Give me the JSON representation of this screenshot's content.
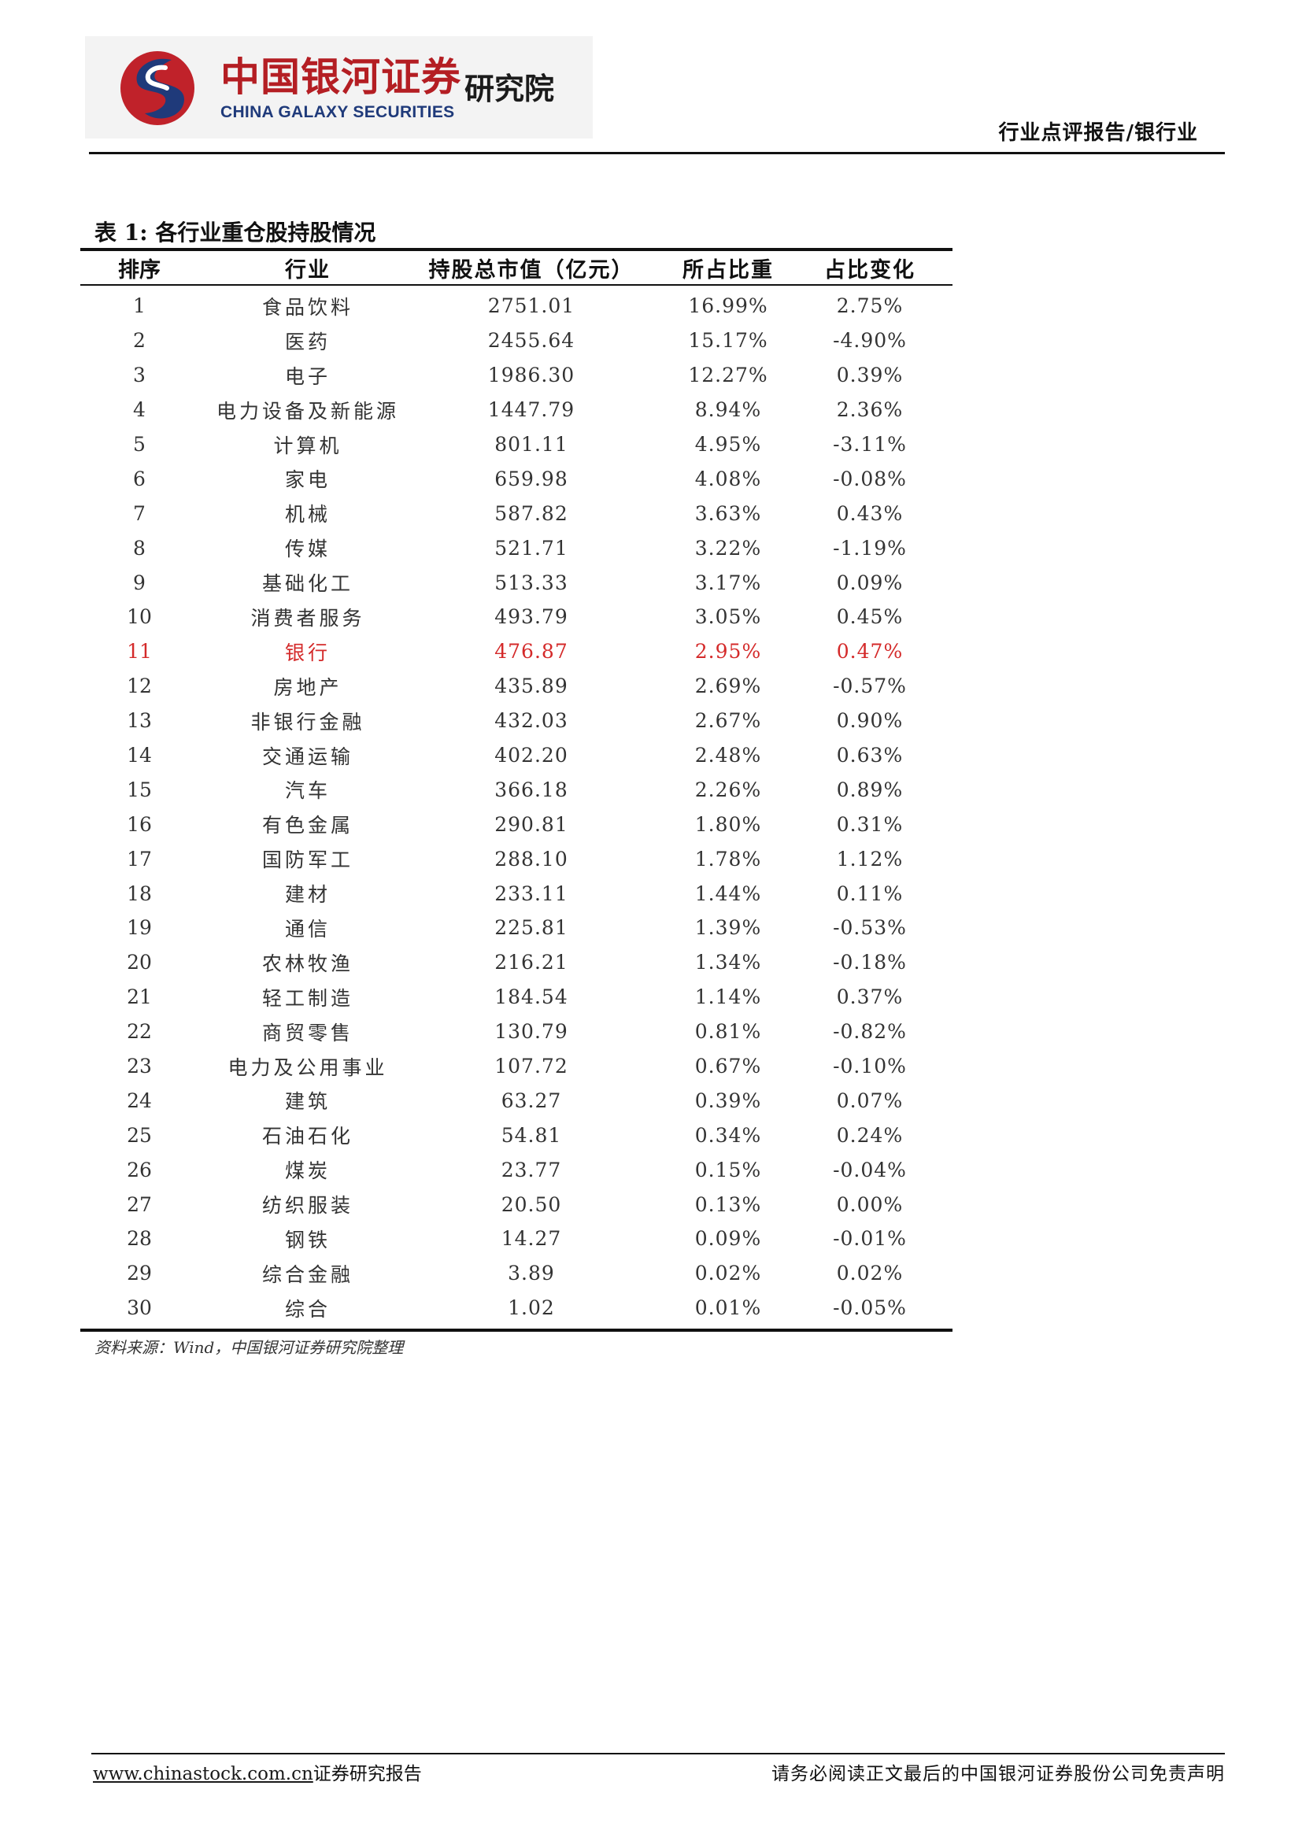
{
  "header": {
    "logo_cn": "中国银河证券",
    "logo_en": "CHINA GALAXY SECURITIES",
    "logo_institute": "研究院",
    "report_type": "行业点评报告/银行业",
    "colors": {
      "brand_red": "#b41e23",
      "brand_blue": "#1f3a7a"
    }
  },
  "table": {
    "title": "表 1: 各行业重仓股持股情况",
    "headers": [
      "排序",
      "行业",
      "持股总市值（亿元）",
      "所占比重",
      "占比变化"
    ],
    "highlight_color": "#d42a2a",
    "rows": [
      {
        "rank": "1",
        "industry": "食品饮料",
        "value": "2751.01",
        "weight": "16.99%",
        "change": "2.75%"
      },
      {
        "rank": "2",
        "industry": "医药",
        "value": "2455.64",
        "weight": "15.17%",
        "change": "-4.90%"
      },
      {
        "rank": "3",
        "industry": "电子",
        "value": "1986.30",
        "weight": "12.27%",
        "change": "0.39%"
      },
      {
        "rank": "4",
        "industry": "电力设备及新能源",
        "value": "1447.79",
        "weight": "8.94%",
        "change": "2.36%"
      },
      {
        "rank": "5",
        "industry": "计算机",
        "value": "801.11",
        "weight": "4.95%",
        "change": "-3.11%"
      },
      {
        "rank": "6",
        "industry": "家电",
        "value": "659.98",
        "weight": "4.08%",
        "change": "-0.08%"
      },
      {
        "rank": "7",
        "industry": "机械",
        "value": "587.82",
        "weight": "3.63%",
        "change": "0.43%"
      },
      {
        "rank": "8",
        "industry": "传媒",
        "value": "521.71",
        "weight": "3.22%",
        "change": "-1.19%"
      },
      {
        "rank": "9",
        "industry": "基础化工",
        "value": "513.33",
        "weight": "3.17%",
        "change": "0.09%"
      },
      {
        "rank": "10",
        "industry": "消费者服务",
        "value": "493.79",
        "weight": "3.05%",
        "change": "0.45%"
      },
      {
        "rank": "11",
        "industry": "银行",
        "value": "476.87",
        "weight": "2.95%",
        "change": "0.47%",
        "highlight": true
      },
      {
        "rank": "12",
        "industry": "房地产",
        "value": "435.89",
        "weight": "2.69%",
        "change": "-0.57%"
      },
      {
        "rank": "13",
        "industry": "非银行金融",
        "value": "432.03",
        "weight": "2.67%",
        "change": "0.90%"
      },
      {
        "rank": "14",
        "industry": "交通运输",
        "value": "402.20",
        "weight": "2.48%",
        "change": "0.63%"
      },
      {
        "rank": "15",
        "industry": "汽车",
        "value": "366.18",
        "weight": "2.26%",
        "change": "0.89%"
      },
      {
        "rank": "16",
        "industry": "有色金属",
        "value": "290.81",
        "weight": "1.80%",
        "change": "0.31%"
      },
      {
        "rank": "17",
        "industry": "国防军工",
        "value": "288.10",
        "weight": "1.78%",
        "change": "1.12%"
      },
      {
        "rank": "18",
        "industry": "建材",
        "value": "233.11",
        "weight": "1.44%",
        "change": "0.11%"
      },
      {
        "rank": "19",
        "industry": "通信",
        "value": "225.81",
        "weight": "1.39%",
        "change": "-0.53%"
      },
      {
        "rank": "20",
        "industry": "农林牧渔",
        "value": "216.21",
        "weight": "1.34%",
        "change": "-0.18%"
      },
      {
        "rank": "21",
        "industry": "轻工制造",
        "value": "184.54",
        "weight": "1.14%",
        "change": "0.37%"
      },
      {
        "rank": "22",
        "industry": "商贸零售",
        "value": "130.79",
        "weight": "0.81%",
        "change": "-0.82%"
      },
      {
        "rank": "23",
        "industry": "电力及公用事业",
        "value": "107.72",
        "weight": "0.67%",
        "change": "-0.10%"
      },
      {
        "rank": "24",
        "industry": "建筑",
        "value": "63.27",
        "weight": "0.39%",
        "change": "0.07%"
      },
      {
        "rank": "25",
        "industry": "石油石化",
        "value": "54.81",
        "weight": "0.34%",
        "change": "0.24%"
      },
      {
        "rank": "26",
        "industry": "煤炭",
        "value": "23.77",
        "weight": "0.15%",
        "change": "-0.04%"
      },
      {
        "rank": "27",
        "industry": "纺织服装",
        "value": "20.50",
        "weight": "0.13%",
        "change": "0.00%"
      },
      {
        "rank": "28",
        "industry": "钢铁",
        "value": "14.27",
        "weight": "0.09%",
        "change": "-0.01%"
      },
      {
        "rank": "29",
        "industry": "综合金融",
        "value": "3.89",
        "weight": "0.02%",
        "change": "0.02%"
      },
      {
        "rank": "30",
        "industry": "综合",
        "value": "1.02",
        "weight": "0.01%",
        "change": "-0.05%"
      }
    ],
    "source": "资料来源：Wind，中国银河证券研究院整理"
  },
  "footer": {
    "website": "www.chinastock.com.cn",
    "website_suffix": "证券研究报告",
    "disclaimer": "请务必阅读正文最后的中国银河证券股份公司免责声明"
  }
}
